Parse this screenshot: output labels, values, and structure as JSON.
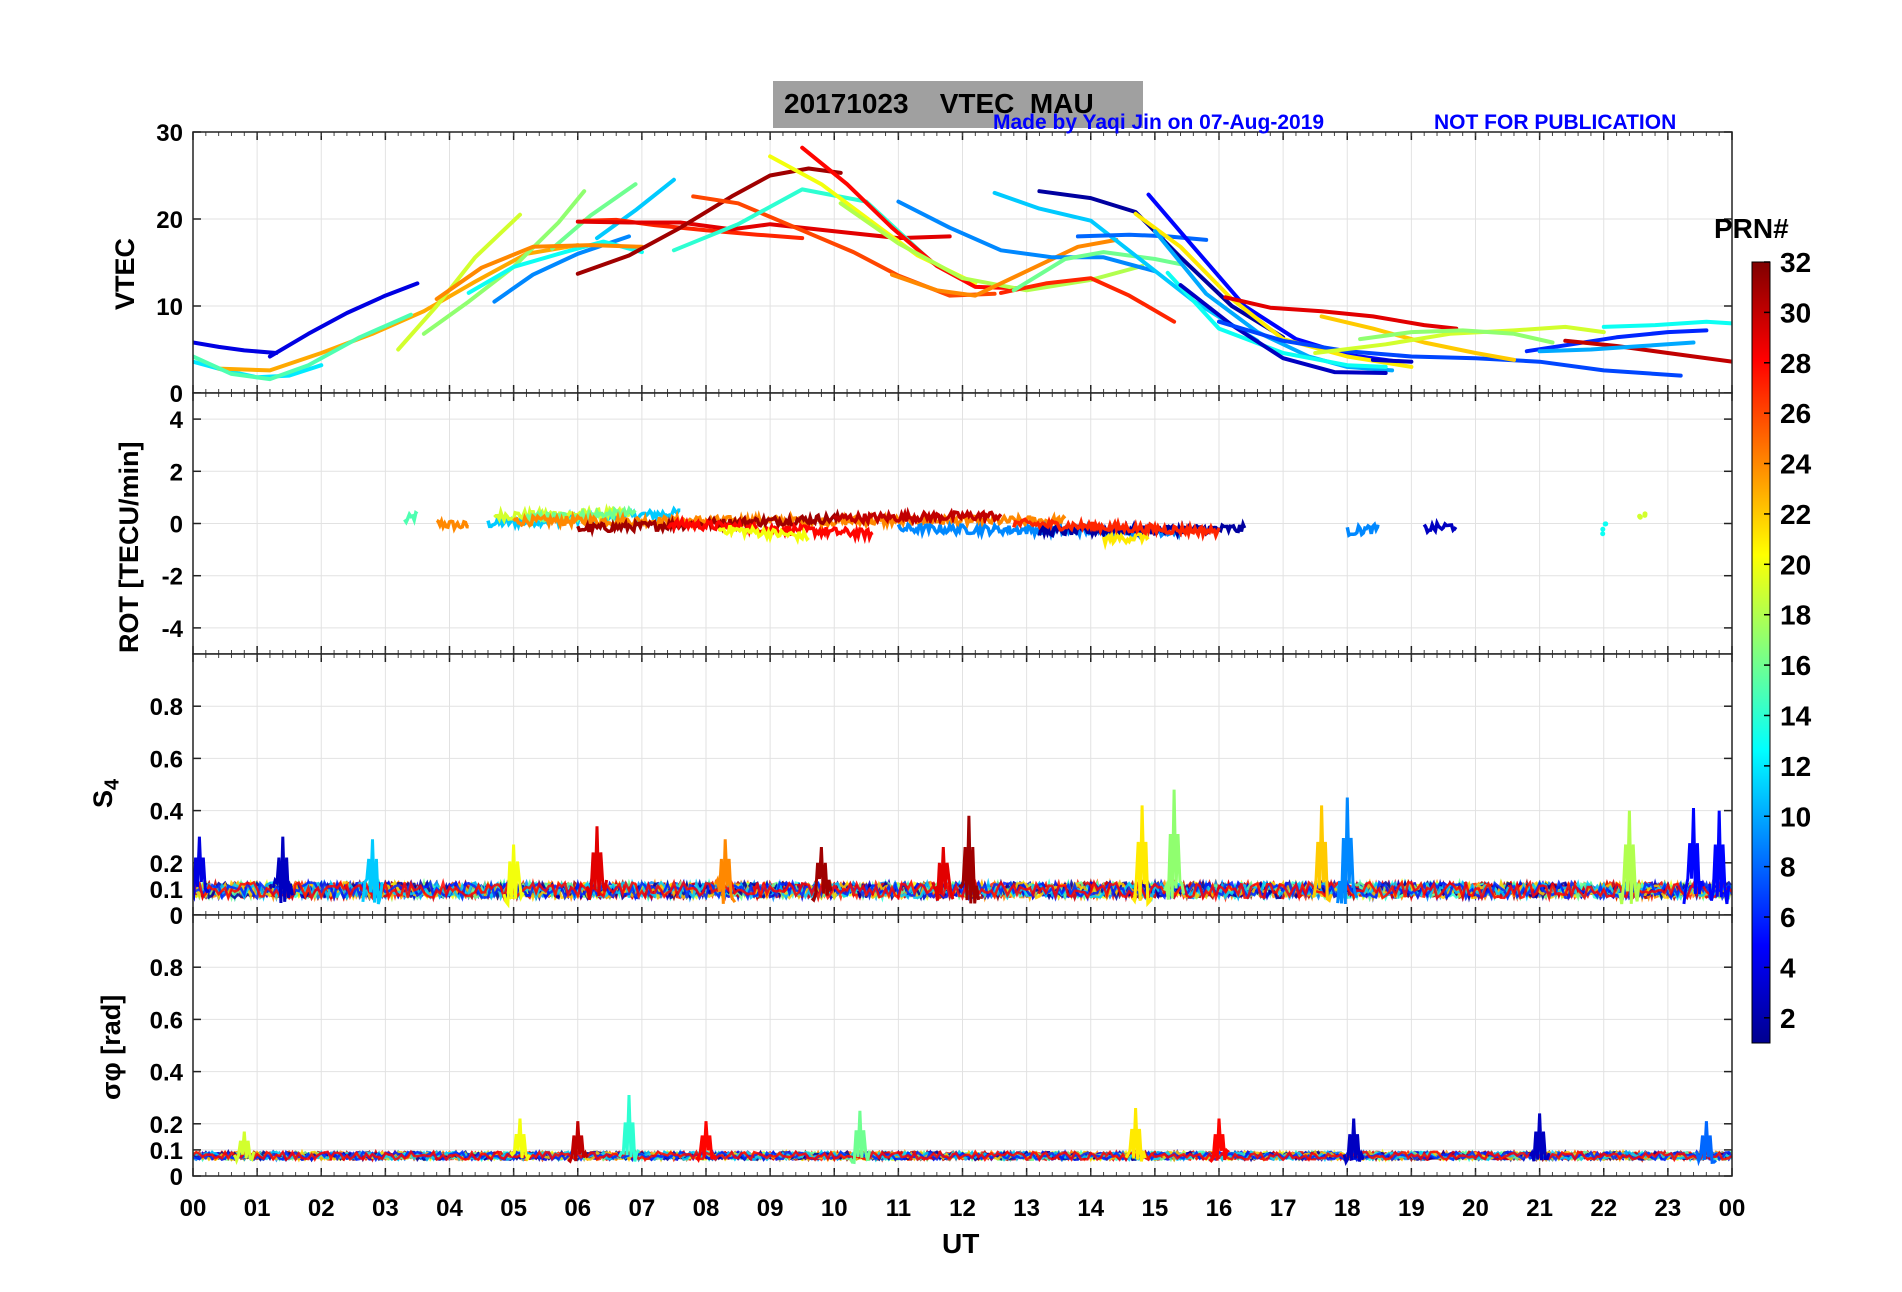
{
  "header": {
    "title": "20171023    VTEC  MAU",
    "made_by": "Made by Yaqi Jin on 07-Aug-2019",
    "notice": "NOT FOR PUBLICATION"
  },
  "colorbar": {
    "label": "PRN#",
    "ticks": [
      "2",
      "4",
      "6",
      "8",
      "10",
      "12",
      "14",
      "16",
      "18",
      "20",
      "22",
      "24",
      "26",
      "28",
      "30",
      "32"
    ],
    "range": [
      1,
      32
    ]
  },
  "x_axis": {
    "label": "UT",
    "ticks": [
      "00",
      "01",
      "02",
      "03",
      "04",
      "05",
      "06",
      "07",
      "08",
      "09",
      "10",
      "11",
      "12",
      "13",
      "14",
      "15",
      "16",
      "17",
      "18",
      "19",
      "20",
      "21",
      "22",
      "23",
      "00"
    ],
    "range": [
      0,
      24
    ]
  },
  "chart_data": [
    {
      "type": "line",
      "ylabel": "VTEC",
      "ylim": [
        0,
        30
      ],
      "yticks": [
        "0",
        "10",
        "20",
        "30"
      ],
      "grid": true,
      "series": [
        {
          "prn": 4,
          "x": [
            0.0,
            0.4,
            0.8,
            1.3
          ],
          "y": [
            5.8,
            5.3,
            4.9,
            4.6
          ]
        },
        {
          "prn": 4,
          "x": [
            1.2,
            1.8,
            2.4,
            3.0,
            3.5
          ],
          "y": [
            4.2,
            6.8,
            9.2,
            11.2,
            12.6
          ]
        },
        {
          "prn": 12,
          "x": [
            0.0,
            0.5,
            1.0,
            1.5,
            2.0
          ],
          "y": [
            3.6,
            2.6,
            1.8,
            2.0,
            3.2
          ]
        },
        {
          "prn": 23,
          "x": [
            0.4,
            1.2,
            2.0,
            2.8,
            3.6,
            4.4,
            5.2,
            6.0
          ],
          "y": [
            2.8,
            2.6,
            4.6,
            6.8,
            9.4,
            12.8,
            16.0,
            17.0
          ]
        },
        {
          "prn": 15,
          "x": [
            0.0,
            0.6,
            1.2,
            1.8,
            2.6,
            3.4
          ],
          "y": [
            4.2,
            2.2,
            1.6,
            3.2,
            6.4,
            9.0
          ]
        },
        {
          "prn": 19,
          "x": [
            3.2,
            3.8,
            4.4,
            5.1
          ],
          "y": [
            5.0,
            10.0,
            15.6,
            20.5
          ]
        },
        {
          "prn": 17,
          "x": [
            3.6,
            4.3,
            5.0,
            5.7,
            6.1
          ],
          "y": [
            6.8,
            10.5,
            14.5,
            19.6,
            23.2
          ]
        },
        {
          "prn": 9,
          "x": [
            4.7,
            5.3,
            6.0,
            6.8
          ],
          "y": [
            10.5,
            13.6,
            16.0,
            18.0
          ]
        },
        {
          "prn": 13,
          "x": [
            4.3,
            5.0,
            5.8,
            6.4,
            7.0
          ],
          "y": [
            11.5,
            14.5,
            16.2,
            17.4,
            16.2
          ]
        },
        {
          "prn": 16,
          "x": [
            5.6,
            6.2,
            6.9
          ],
          "y": [
            16.6,
            20.4,
            24.0
          ]
        },
        {
          "prn": 11,
          "x": [
            6.3,
            6.9,
            7.5
          ],
          "y": [
            17.8,
            21.0,
            24.5
          ]
        },
        {
          "prn": 24,
          "x": [
            3.8,
            4.5,
            5.3,
            6.2,
            7.0
          ],
          "y": [
            10.8,
            14.4,
            16.8,
            17.0,
            16.8
          ]
        },
        {
          "prn": 27,
          "x": [
            6.1,
            6.6,
            7.2,
            8.0,
            8.8,
            9.5
          ],
          "y": [
            19.8,
            19.9,
            19.3,
            18.7,
            18.2,
            17.8
          ]
        },
        {
          "prn": 29,
          "x": [
            6.0,
            6.8,
            7.6,
            8.4,
            9.0,
            10.0,
            11.0,
            11.8
          ],
          "y": [
            19.7,
            19.6,
            19.6,
            18.8,
            19.4,
            18.6,
            17.8,
            18.0
          ]
        },
        {
          "prn": 31,
          "x": [
            6.0,
            6.8,
            7.6,
            8.4,
            9.0,
            9.6,
            10.1
          ],
          "y": [
            13.7,
            15.8,
            19.0,
            22.6,
            25.0,
            25.8,
            25.3
          ]
        },
        {
          "prn": 26,
          "x": [
            7.8,
            8.5,
            9.4,
            10.3,
            11.0,
            11.8,
            12.5
          ],
          "y": [
            22.6,
            21.8,
            19.0,
            16.2,
            13.5,
            11.2,
            11.4
          ]
        },
        {
          "prn": 14,
          "x": [
            7.5,
            8.5,
            9.5,
            10.5,
            11.5
          ],
          "y": [
            16.4,
            19.4,
            23.4,
            22.0,
            15.2
          ]
        },
        {
          "prn": 20,
          "x": [
            9.0,
            9.8,
            10.6,
            11.3,
            12.2
          ],
          "y": [
            27.2,
            24.0,
            19.6,
            15.8,
            12.6
          ]
        },
        {
          "prn": 28,
          "x": [
            9.5,
            10.2,
            10.9,
            11.6,
            12.2,
            13.0
          ],
          "y": [
            28.2,
            24.0,
            19.0,
            14.6,
            12.2,
            12.0
          ]
        },
        {
          "prn": 18,
          "x": [
            10.1,
            11.0,
            12.0,
            13.0,
            14.0,
            14.8
          ],
          "y": [
            21.8,
            17.2,
            13.2,
            11.8,
            13.0,
            14.6
          ]
        },
        {
          "prn": 24,
          "x": [
            10.9,
            11.6,
            12.2,
            13.0,
            13.8,
            14.4
          ],
          "y": [
            13.6,
            11.8,
            11.2,
            14.0,
            16.8,
            17.6
          ]
        },
        {
          "prn": 9,
          "x": [
            11.0,
            11.8,
            12.6,
            13.4,
            14.2,
            15.0
          ],
          "y": [
            22.0,
            19.0,
            16.4,
            15.6,
            15.6,
            14.0
          ]
        },
        {
          "prn": 27,
          "x": [
            12.6,
            13.3,
            14.0,
            14.6,
            15.3
          ],
          "y": [
            11.5,
            12.6,
            13.2,
            11.2,
            8.2
          ]
        },
        {
          "prn": 16,
          "x": [
            12.8,
            13.6,
            14.2,
            15.0,
            15.4
          ],
          "y": [
            11.8,
            15.4,
            16.2,
            15.4,
            14.8
          ]
        },
        {
          "prn": 11,
          "x": [
            12.5,
            13.2,
            14.0,
            14.8,
            15.6,
            16.6
          ],
          "y": [
            23.0,
            21.2,
            19.8,
            15.2,
            10.6,
            6.0
          ]
        },
        {
          "prn": 2,
          "x": [
            13.2,
            14.0,
            14.7,
            15.4,
            16.2,
            17.0
          ],
          "y": [
            23.2,
            22.4,
            20.8,
            15.6,
            10.0,
            6.4
          ]
        },
        {
          "prn": 8,
          "x": [
            13.8,
            14.6,
            15.2,
            15.8
          ],
          "y": [
            18.0,
            18.2,
            18.0,
            17.6
          ]
        },
        {
          "prn": 5,
          "x": [
            14.9,
            15.6,
            16.4,
            17.2,
            18.0,
            18.8
          ],
          "y": [
            22.8,
            16.8,
            10.0,
            6.2,
            4.4,
            3.6
          ]
        },
        {
          "prn": 21,
          "x": [
            14.7,
            15.4,
            16.2,
            17.0,
            18.0,
            19.0
          ],
          "y": [
            20.6,
            16.8,
            10.8,
            6.2,
            4.2,
            3.0
          ]
        },
        {
          "prn": 10,
          "x": [
            15.0,
            15.8,
            16.6,
            17.4,
            18.0,
            18.7
          ],
          "y": [
            18.6,
            11.4,
            7.0,
            4.2,
            3.0,
            2.6
          ]
        },
        {
          "prn": 13,
          "x": [
            15.2,
            16.0,
            17.0,
            18.0,
            18.6
          ],
          "y": [
            13.8,
            7.4,
            4.6,
            3.2,
            3.0
          ]
        },
        {
          "prn": 3,
          "x": [
            15.4,
            16.2,
            17.0,
            17.8,
            18.6
          ],
          "y": [
            12.4,
            7.8,
            4.0,
            2.4,
            2.3
          ]
        },
        {
          "prn": 7,
          "x": [
            16.0,
            17.0,
            18.0,
            19.0,
            20.0,
            21.0,
            22.0,
            23.2
          ],
          "y": [
            8.2,
            6.0,
            4.8,
            4.2,
            4.0,
            3.6,
            2.6,
            2.0
          ]
        },
        {
          "prn": 29,
          "x": [
            16.1,
            16.8,
            17.6,
            18.4,
            19.2,
            19.7
          ],
          "y": [
            11.0,
            9.8,
            9.4,
            8.8,
            7.8,
            7.4
          ]
        },
        {
          "prn": 22,
          "x": [
            17.6,
            18.4,
            19.2,
            20.0,
            20.6
          ],
          "y": [
            8.8,
            7.4,
            5.8,
            4.6,
            3.8
          ]
        },
        {
          "prn": 19,
          "x": [
            17.5,
            18.6,
            19.6,
            20.6,
            21.4,
            22.0
          ],
          "y": [
            4.6,
            5.6,
            6.8,
            7.2,
            7.6,
            7.0
          ]
        },
        {
          "prn": 17,
          "x": [
            18.2,
            19.0,
            19.8,
            20.6,
            21.2
          ],
          "y": [
            6.2,
            7.0,
            7.2,
            6.8,
            5.8
          ]
        },
        {
          "prn": 3,
          "x": [
            18.4,
            19.0
          ],
          "y": [
            3.8,
            3.6
          ]
        },
        {
          "prn": 6,
          "x": [
            20.8,
            21.5,
            22.2,
            23.0,
            23.6
          ],
          "y": [
            4.8,
            5.6,
            6.4,
            7.0,
            7.2
          ]
        },
        {
          "prn": 13,
          "x": [
            22.0,
            22.8,
            23.6,
            24.0
          ],
          "y": [
            7.6,
            7.8,
            8.2,
            8.0
          ]
        },
        {
          "prn": 30,
          "x": [
            21.4,
            22.2,
            23.0,
            24.0
          ],
          "y": [
            6.0,
            5.4,
            4.6,
            3.6
          ]
        },
        {
          "prn": 10,
          "x": [
            21.0,
            21.8,
            22.6,
            23.4
          ],
          "y": [
            4.8,
            5.0,
            5.4,
            5.8
          ]
        }
      ]
    },
    {
      "type": "scatter",
      "ylabel": "ROT [TECU/min]",
      "ylim": [
        -5,
        5
      ],
      "yticks": [
        "-4",
        "-2",
        "0",
        "2",
        "4"
      ],
      "grid": true,
      "series": [
        {
          "prn": 15,
          "x": [
            3.3,
            3.5
          ],
          "y": [
            0.1,
            0.3
          ]
        },
        {
          "prn": 24,
          "x": [
            3.8,
            4.3
          ],
          "y": [
            0.0,
            -0.1
          ]
        },
        {
          "prn": 11,
          "x": [
            4.6,
            7.6
          ],
          "y": [
            0.0,
            0.4
          ]
        },
        {
          "prn": 19,
          "x": [
            4.7,
            6.8
          ],
          "y": [
            0.3,
            0.4
          ]
        },
        {
          "prn": 16,
          "x": [
            5.2,
            6.9
          ],
          "y": [
            0.2,
            0.4
          ]
        },
        {
          "prn": 24,
          "x": [
            5.0,
            13.6
          ],
          "y": [
            0.1,
            0.1
          ]
        },
        {
          "prn": 31,
          "x": [
            6.0,
            10.1
          ],
          "y": [
            -0.2,
            0.2
          ]
        },
        {
          "prn": 28,
          "x": [
            7.4,
            10.6
          ],
          "y": [
            0.0,
            -0.4
          ]
        },
        {
          "prn": 20,
          "x": [
            8.2,
            9.6
          ],
          "y": [
            -0.2,
            -0.5
          ]
        },
        {
          "prn": 30,
          "x": [
            10.0,
            12.6
          ],
          "y": [
            0.2,
            0.3
          ]
        },
        {
          "prn": 9,
          "x": [
            11.0,
            15.4
          ],
          "y": [
            -0.2,
            -0.3
          ]
        },
        {
          "prn": 2,
          "x": [
            13.2,
            16.4
          ],
          "y": [
            -0.3,
            -0.2
          ]
        },
        {
          "prn": 21,
          "x": [
            14.2,
            14.9
          ],
          "y": [
            -0.6,
            -0.5
          ]
        },
        {
          "prn": 27,
          "x": [
            12.8,
            16.0
          ],
          "y": [
            0.0,
            -0.3
          ]
        },
        {
          "prn": 9,
          "x": [
            18.0,
            18.5
          ],
          "y": [
            -0.3,
            -0.2
          ]
        },
        {
          "prn": 3,
          "x": [
            19.2,
            19.7
          ],
          "y": [
            -0.2,
            -0.1
          ]
        },
        {
          "prn": 13,
          "x": [
            22.0
          ],
          "y": [
            -0.2
          ]
        },
        {
          "prn": 19,
          "x": [
            22.6
          ],
          "y": [
            0.2
          ]
        }
      ]
    },
    {
      "type": "line",
      "ylabel": "S4",
      "ylim": [
        0,
        1
      ],
      "yticks": [
        "0",
        "0.1",
        "0.2",
        "0.4",
        "0.6",
        "0.8"
      ],
      "grid": true,
      "baseline_range": [
        0.04,
        0.14
      ],
      "peaks": [
        {
          "x": 0.1,
          "y": 0.3,
          "prn": 4
        },
        {
          "x": 1.4,
          "y": 0.3,
          "prn": 3
        },
        {
          "x": 2.8,
          "y": 0.29,
          "prn": 11
        },
        {
          "x": 5.0,
          "y": 0.27,
          "prn": 20
        },
        {
          "x": 6.3,
          "y": 0.34,
          "prn": 29
        },
        {
          "x": 8.3,
          "y": 0.29,
          "prn": 24
        },
        {
          "x": 9.8,
          "y": 0.26,
          "prn": 31
        },
        {
          "x": 11.7,
          "y": 0.26,
          "prn": 29
        },
        {
          "x": 12.1,
          "y": 0.38,
          "prn": 31
        },
        {
          "x": 14.8,
          "y": 0.42,
          "prn": 21
        },
        {
          "x": 15.3,
          "y": 0.48,
          "prn": 17
        },
        {
          "x": 17.6,
          "y": 0.42,
          "prn": 22
        },
        {
          "x": 18.0,
          "y": 0.45,
          "prn": 9
        },
        {
          "x": 22.4,
          "y": 0.4,
          "prn": 18
        },
        {
          "x": 23.4,
          "y": 0.41,
          "prn": 5
        },
        {
          "x": 23.8,
          "y": 0.4,
          "prn": 5
        }
      ]
    },
    {
      "type": "line",
      "ylabel": "σφ [rad]",
      "ylim": [
        0,
        1
      ],
      "yticks": [
        "0",
        "0.1",
        "0.2",
        "0.4",
        "0.6",
        "0.8"
      ],
      "grid": true,
      "baseline_range": [
        0.05,
        0.1
      ],
      "peaks": [
        {
          "x": 0.8,
          "y": 0.17,
          "prn": 19
        },
        {
          "x": 5.1,
          "y": 0.22,
          "prn": 20
        },
        {
          "x": 6.0,
          "y": 0.21,
          "prn": 30
        },
        {
          "x": 6.8,
          "y": 0.31,
          "prn": 14
        },
        {
          "x": 8.0,
          "y": 0.21,
          "prn": 28
        },
        {
          "x": 10.4,
          "y": 0.25,
          "prn": 16
        },
        {
          "x": 14.7,
          "y": 0.26,
          "prn": 21
        },
        {
          "x": 16.0,
          "y": 0.22,
          "prn": 28
        },
        {
          "x": 18.1,
          "y": 0.22,
          "prn": 3
        },
        {
          "x": 21.0,
          "y": 0.24,
          "prn": 3
        },
        {
          "x": 23.6,
          "y": 0.21,
          "prn": 8
        }
      ]
    }
  ]
}
